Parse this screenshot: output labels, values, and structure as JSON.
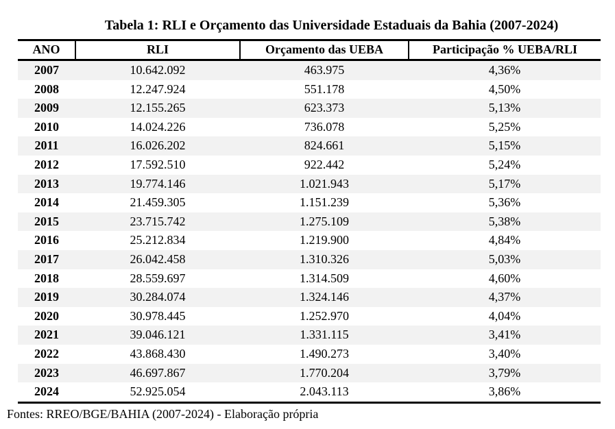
{
  "title": "Tabela 1: RLI e Orçamento das Universidade Estaduais da Bahia (2007-2024)",
  "table": {
    "columns": [
      "ANO",
      "RLI",
      "Orçamento das UEBA",
      "Participação % UEBA/RLI"
    ],
    "rows": [
      [
        "2007",
        "10.642.092",
        "463.975",
        "4,36%"
      ],
      [
        "2008",
        "12.247.924",
        "551.178",
        "4,50%"
      ],
      [
        "2009",
        "12.155.265",
        "623.373",
        "5,13%"
      ],
      [
        "2010",
        "14.024.226",
        "736.078",
        "5,25%"
      ],
      [
        "2011",
        "16.026.202",
        "824.661",
        "5,15%"
      ],
      [
        "2012",
        "17.592.510",
        "922.442",
        "5,24%"
      ],
      [
        "2013",
        "19.774.146",
        "1.021.943",
        "5,17%"
      ],
      [
        "2014",
        "21.459.305",
        "1.151.239",
        "5,36%"
      ],
      [
        "2015",
        "23.715.742",
        "1.275.109",
        "5,38%"
      ],
      [
        "2016",
        "25.212.834",
        "1.219.900",
        "4,84%"
      ],
      [
        "2017",
        "26.042.458",
        "1.310.326",
        "5,03%"
      ],
      [
        "2018",
        "28.559.697",
        "1.314.509",
        "4,60%"
      ],
      [
        "2019",
        "30.284.074",
        "1.324.146",
        "4,37%"
      ],
      [
        "2020",
        "30.978.445",
        "1.252.970",
        "4,04%"
      ],
      [
        "2021",
        "39.046.121",
        "1.331.115",
        "3,41%"
      ],
      [
        "2022",
        "43.868.430",
        "1.490.273",
        "3,40%"
      ],
      [
        "2023",
        "46.697.867",
        "1.770.204",
        "3,79%"
      ],
      [
        "2024",
        "52.925.054",
        "2.043.113",
        "3,86%"
      ]
    ]
  },
  "footer": "Fontes: RREO/BGE/BAHIA (2007-2024) - Elaboração própria",
  "colors": {
    "stripe": "#f2f2f2",
    "border": "#000000",
    "text": "#000000",
    "background": "#ffffff"
  }
}
